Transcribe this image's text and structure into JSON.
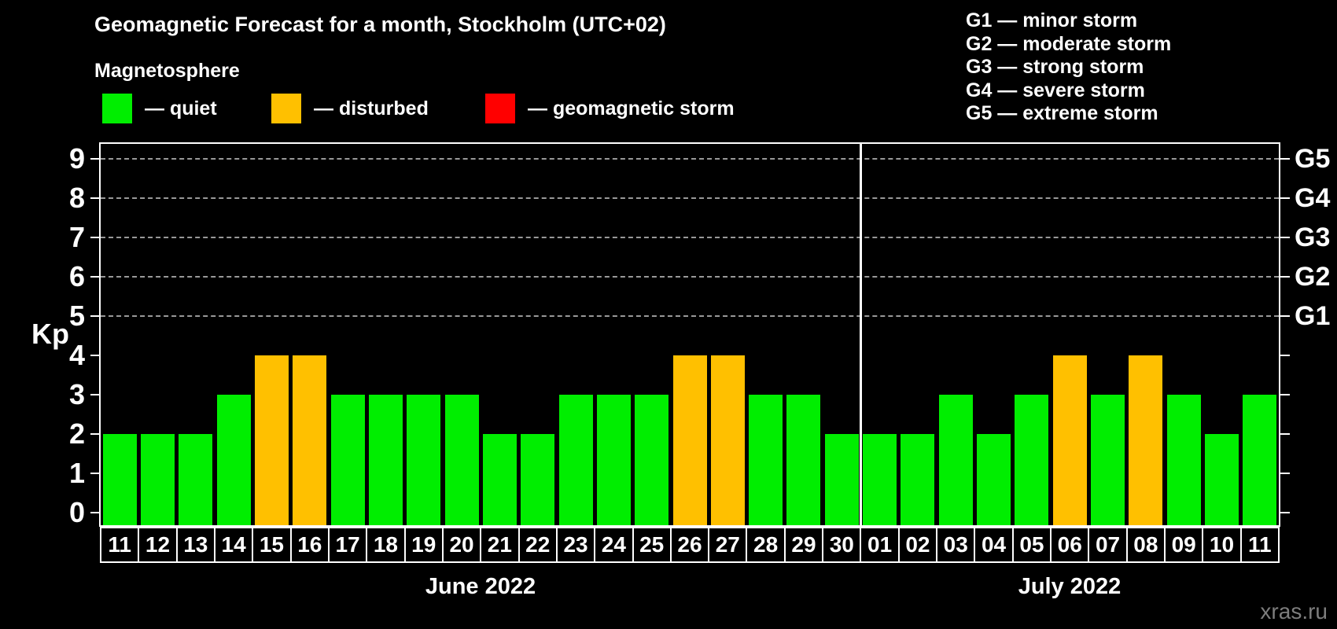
{
  "title": "Geomagnetic Forecast for a month, Stockholm (UTC+02)",
  "subtitle": "Magnetosphere",
  "legend": {
    "items": [
      {
        "key": "quiet",
        "label": "— quiet",
        "color": "#00ee00"
      },
      {
        "key": "disturbed",
        "label": "— disturbed",
        "color": "#ffc000"
      },
      {
        "key": "storm",
        "label": "— geomagnetic storm",
        "color": "#ff0000"
      }
    ]
  },
  "g_legend": {
    "items": [
      "G1 — minor storm",
      "G2 — moderate storm",
      "G3 — strong storm",
      "G4 — severe storm",
      "G5 — extreme storm"
    ]
  },
  "watermark": "xras.ru",
  "chart_data": {
    "type": "bar",
    "title": "Geomagnetic Forecast for a month, Stockholm (UTC+02)",
    "ylabel": "Kp",
    "ylim": [
      0,
      9
    ],
    "yticks": [
      0,
      1,
      2,
      3,
      4,
      5,
      6,
      7,
      8,
      9
    ],
    "grid": "horizontal dashed gridlines at Kp 5-9 only",
    "grid_levels": [
      5,
      6,
      7,
      8,
      9
    ],
    "right_axis": [
      {
        "kp": 5,
        "label": "G1"
      },
      {
        "kp": 6,
        "label": "G2"
      },
      {
        "kp": 7,
        "label": "G3"
      },
      {
        "kp": 8,
        "label": "G4"
      },
      {
        "kp": 9,
        "label": "G5"
      }
    ],
    "colors": {
      "quiet": "#00ee00",
      "disturbed": "#ffc000",
      "storm": "#ff0000"
    },
    "months": [
      {
        "label": "June 2022",
        "days": 20
      },
      {
        "label": "July 2022",
        "days": 11
      }
    ],
    "categories": [
      "11",
      "12",
      "13",
      "14",
      "15",
      "16",
      "17",
      "18",
      "19",
      "20",
      "21",
      "22",
      "23",
      "24",
      "25",
      "26",
      "27",
      "28",
      "29",
      "30",
      "01",
      "02",
      "03",
      "04",
      "05",
      "06",
      "07",
      "08",
      "09",
      "10",
      "11"
    ],
    "values": [
      2,
      2,
      2,
      3,
      4,
      4,
      3,
      3,
      3,
      3,
      2,
      2,
      3,
      3,
      3,
      4,
      4,
      3,
      3,
      2,
      2,
      2,
      3,
      2,
      3,
      4,
      3,
      4,
      3,
      2,
      3
    ],
    "statuses": [
      "quiet",
      "quiet",
      "quiet",
      "quiet",
      "disturbed",
      "disturbed",
      "quiet",
      "quiet",
      "quiet",
      "quiet",
      "quiet",
      "quiet",
      "quiet",
      "quiet",
      "quiet",
      "disturbed",
      "disturbed",
      "quiet",
      "quiet",
      "quiet",
      "quiet",
      "quiet",
      "quiet",
      "quiet",
      "quiet",
      "disturbed",
      "quiet",
      "disturbed",
      "quiet",
      "quiet",
      "quiet"
    ],
    "legend_position": "top-left"
  }
}
